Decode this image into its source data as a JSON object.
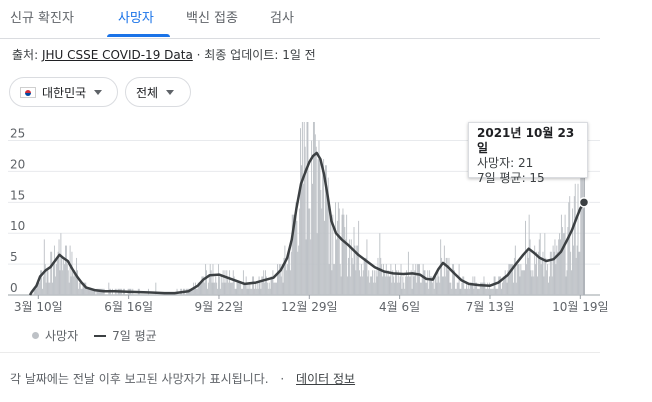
{
  "tabs": [
    {
      "label": "신규 확진자",
      "active": false
    },
    {
      "label": "사망자",
      "active": true
    },
    {
      "label": "백신 접종",
      "active": false
    },
    {
      "label": "검사",
      "active": false
    }
  ],
  "source": {
    "prefix": "출처:",
    "link": "JHU CSSE COVID-19 Data",
    "separator": "·",
    "update": "최종 업데이트: 1일 전"
  },
  "filters": {
    "country": "대한민국",
    "scope": "전체"
  },
  "legend": {
    "bars": "사망자",
    "line": "7일 평균"
  },
  "tooltip": {
    "date": "2021년 10월 23일",
    "deaths": "사망자: 21",
    "average": "7일 평균: 15"
  },
  "footer": {
    "note": "각 날짜에는 전날 이후 보고된 사망자가 표시됩니다.",
    "separator": "·",
    "link": "데이터 정보"
  },
  "colors": {
    "bars": "#bdc1c6",
    "line": "#3c4043",
    "accent": "#1a73e8",
    "grid": "#e8eaed"
  },
  "icons": {
    "flag": "south-korea-flag-icon",
    "caret": "caret-down-icon"
  },
  "chart_data": {
    "type": "bar",
    "x_start": "2020-03-01",
    "x_end": "2021-10-23",
    "ylim": [
      0,
      28
    ],
    "yticks": [
      0,
      5,
      10,
      15,
      20,
      25
    ],
    "xticks": [
      {
        "date": "2020-03-10",
        "label": "3월 10일"
      },
      {
        "date": "2020-06-16",
        "label": "6월 16일"
      },
      {
        "date": "2020-09-22",
        "label": "9월 22일"
      },
      {
        "date": "2020-12-29",
        "label": "12월 29일"
      },
      {
        "date": "2021-04-06",
        "label": "4월 6일"
      },
      {
        "date": "2021-07-13",
        "label": "7월 13일"
      },
      {
        "date": "2021-10-19",
        "label": "10월 19일"
      }
    ],
    "grid": true,
    "legend_position": "bottom-left",
    "series": [
      {
        "name": "7일 평균",
        "kind": "line",
        "points": [
          [
            "2020-03-01",
            0
          ],
          [
            "2020-03-03",
            0.5
          ],
          [
            "2020-03-08",
            1.5
          ],
          [
            "2020-03-12",
            3
          ],
          [
            "2020-03-18",
            4
          ],
          [
            "2020-03-23",
            4.5
          ],
          [
            "2020-03-28",
            5.5
          ],
          [
            "2020-04-02",
            6.5
          ],
          [
            "2020-04-06",
            6
          ],
          [
            "2020-04-11",
            5.5
          ],
          [
            "2020-04-16",
            4.2
          ],
          [
            "2020-04-21",
            3
          ],
          [
            "2020-04-26",
            2
          ],
          [
            "2020-05-01",
            1.2
          ],
          [
            "2020-05-10",
            0.8
          ],
          [
            "2020-05-20",
            0.6
          ],
          [
            "2020-06-01",
            0.6
          ],
          [
            "2020-06-20",
            0.5
          ],
          [
            "2020-07-10",
            0.4
          ],
          [
            "2020-07-25",
            0.3
          ],
          [
            "2020-08-05",
            0.3
          ],
          [
            "2020-08-20",
            0.6
          ],
          [
            "2020-08-30",
            1.5
          ],
          [
            "2020-09-05",
            2.5
          ],
          [
            "2020-09-12",
            3.2
          ],
          [
            "2020-09-22",
            3.3
          ],
          [
            "2020-10-05",
            2.6
          ],
          [
            "2020-10-20",
            1.8
          ],
          [
            "2020-11-01",
            2
          ],
          [
            "2020-11-10",
            2.4
          ],
          [
            "2020-11-20",
            2.8
          ],
          [
            "2020-11-28",
            4
          ],
          [
            "2020-12-05",
            6
          ],
          [
            "2020-12-10",
            9
          ],
          [
            "2020-12-15",
            14
          ],
          [
            "2020-12-20",
            18
          ],
          [
            "2020-12-25",
            20
          ],
          [
            "2020-12-29",
            21.5
          ],
          [
            "2021-01-02",
            22.5
          ],
          [
            "2021-01-06",
            23
          ],
          [
            "2021-01-10",
            22
          ],
          [
            "2021-01-14",
            19.5
          ],
          [
            "2021-01-18",
            16
          ],
          [
            "2021-01-22",
            12
          ],
          [
            "2021-01-27",
            10
          ],
          [
            "2021-02-02",
            9
          ],
          [
            "2021-02-10",
            8
          ],
          [
            "2021-02-20",
            6.5
          ],
          [
            "2021-03-01",
            5.5
          ],
          [
            "2021-03-10",
            4.5
          ],
          [
            "2021-03-20",
            3.8
          ],
          [
            "2021-03-30",
            3.5
          ],
          [
            "2021-04-10",
            3.4
          ],
          [
            "2021-04-20",
            3.5
          ],
          [
            "2021-04-28",
            3.3
          ],
          [
            "2021-05-05",
            2.6
          ],
          [
            "2021-05-12",
            2.5
          ],
          [
            "2021-05-18",
            4.2
          ],
          [
            "2021-05-23",
            5.2
          ],
          [
            "2021-05-28",
            4.6
          ],
          [
            "2021-06-05",
            3.4
          ],
          [
            "2021-06-12",
            2.4
          ],
          [
            "2021-06-20",
            1.8
          ],
          [
            "2021-07-01",
            1.6
          ],
          [
            "2021-07-13",
            1.5
          ],
          [
            "2021-07-22",
            2
          ],
          [
            "2021-08-01",
            3.2
          ],
          [
            "2021-08-10",
            5
          ],
          [
            "2021-08-18",
            6.5
          ],
          [
            "2021-08-24",
            7.5
          ],
          [
            "2021-08-30",
            6.8
          ],
          [
            "2021-09-05",
            6
          ],
          [
            "2021-09-12",
            5.5
          ],
          [
            "2021-09-20",
            5.8
          ],
          [
            "2021-09-28",
            7
          ],
          [
            "2021-10-05",
            9
          ],
          [
            "2021-10-10",
            10.5
          ],
          [
            "2021-10-15",
            12.5
          ],
          [
            "2021-10-19",
            14
          ],
          [
            "2021-10-23",
            15
          ]
        ]
      },
      {
        "name": "사망자",
        "kind": "bar",
        "points": [
          [
            "2020-03-16",
            9
          ],
          [
            "2020-03-24",
            7
          ],
          [
            "2020-04-01",
            9
          ],
          [
            "2020-04-08",
            8
          ],
          [
            "2020-04-20",
            6
          ],
          [
            "2020-05-25",
            2
          ],
          [
            "2020-07-15",
            2
          ],
          [
            "2020-09-07",
            5
          ],
          [
            "2020-09-15",
            5
          ],
          [
            "2020-10-18",
            4
          ],
          [
            "2020-12-12",
            13
          ],
          [
            "2020-12-20",
            21
          ],
          [
            "2020-12-24",
            24
          ],
          [
            "2020-12-27",
            28
          ],
          [
            "2020-12-31",
            25
          ],
          [
            "2021-01-03",
            28
          ],
          [
            "2021-01-08",
            25
          ],
          [
            "2021-01-13",
            22
          ],
          [
            "2021-01-18",
            19
          ],
          [
            "2021-01-26",
            15
          ],
          [
            "2021-02-03",
            14
          ],
          [
            "2021-02-20",
            12
          ],
          [
            "2021-03-15",
            10
          ],
          [
            "2021-04-15",
            7
          ],
          [
            "2021-05-20",
            9
          ],
          [
            "2021-08-20",
            12
          ],
          [
            "2021-08-24",
            13
          ],
          [
            "2021-09-10",
            10
          ],
          [
            "2021-09-28",
            13
          ],
          [
            "2021-10-12",
            16
          ],
          [
            "2021-10-16",
            18
          ],
          [
            "2021-10-19",
            19
          ],
          [
            "2021-10-23",
            21
          ]
        ]
      }
    ],
    "highlight": {
      "date": "2021-10-23",
      "value": 15
    }
  }
}
